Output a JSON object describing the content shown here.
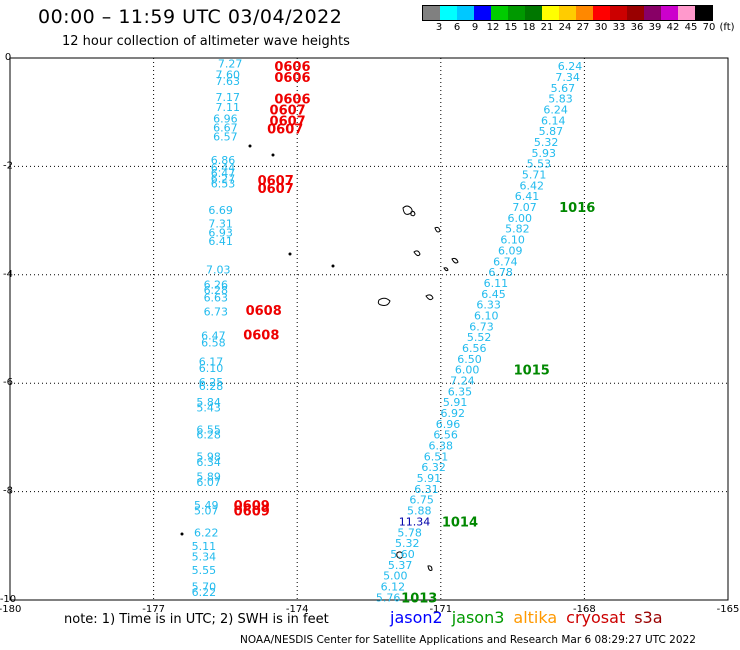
{
  "title": "00:00 – 11:59 UTC 03/04/2022",
  "subtitle": "12 hour collection of altimeter wave heights",
  "legend": {
    "colors": [
      "#808080",
      "#00ffff",
      "#00c8ff",
      "#0000ff",
      "#00cc00",
      "#009900",
      "#007700",
      "#ffff00",
      "#ffcc00",
      "#ff8800",
      "#ff0000",
      "#cc0000",
      "#990000",
      "#880066",
      "#cc00cc",
      "#ff99cc",
      "#000000"
    ],
    "labels": [
      "3",
      "6",
      "9",
      "12",
      "15",
      "18",
      "21",
      "24",
      "27",
      "30",
      "33",
      "36",
      "39",
      "42",
      "45",
      "70",
      "(ft)"
    ]
  },
  "axes": {
    "x_ticks": [
      "-180",
      "-177",
      "-174",
      "-171",
      "-168",
      "-165"
    ],
    "y_ticks": [
      "0",
      "-2",
      "-4",
      "-6",
      "-8",
      "-10"
    ],
    "xlim": [
      -180,
      -165
    ],
    "ylim": [
      -10,
      0
    ]
  },
  "satellites": [
    {
      "name": "jason2",
      "color": "#0000ff"
    },
    {
      "name": "jason3",
      "color": "#009900"
    },
    {
      "name": "altika",
      "color": "#ff9900"
    },
    {
      "name": "cryosat",
      "color": "#cc0000"
    },
    {
      "name": "s3a",
      "color": "#990000"
    }
  ],
  "note": "note: 1) Time is in UTC; 2) SWH is in feet",
  "credit": "NOAA/NESDIS Center for Satellite Applications and Research    Mar  6 08:29:27 UTC 2022",
  "measurements": [
    {
      "lon": -168.3,
      "lat": -0.15,
      "v": "6.24"
    },
    {
      "lon": -168.35,
      "lat": -0.35,
      "v": "7.34"
    },
    {
      "lon": -168.45,
      "lat": -0.55,
      "v": "5.67"
    },
    {
      "lon": -168.5,
      "lat": -0.75,
      "v": "5.83"
    },
    {
      "lon": -168.6,
      "lat": -0.95,
      "v": "6.24"
    },
    {
      "lon": -168.65,
      "lat": -1.15,
      "v": "6.14"
    },
    {
      "lon": -168.7,
      "lat": -1.35,
      "v": "5.87"
    },
    {
      "lon": -168.8,
      "lat": -1.55,
      "v": "5.32"
    },
    {
      "lon": -168.85,
      "lat": -1.75,
      "v": "5.93"
    },
    {
      "lon": -168.95,
      "lat": -1.95,
      "v": "5.53"
    },
    {
      "lon": -169.05,
      "lat": -2.15,
      "v": "5.71"
    },
    {
      "lon": -169.1,
      "lat": -2.35,
      "v": "6.42"
    },
    {
      "lon": -169.2,
      "lat": -2.55,
      "v": "6.41"
    },
    {
      "lon": -169.25,
      "lat": -2.75,
      "v": "7.07"
    },
    {
      "lon": -169.35,
      "lat": -2.95,
      "v": "6.00"
    },
    {
      "lon": -169.4,
      "lat": -3.15,
      "v": "5.82"
    },
    {
      "lon": -169.5,
      "lat": -3.35,
      "v": "6.10"
    },
    {
      "lon": -169.55,
      "lat": -3.55,
      "v": "6.09"
    },
    {
      "lon": -169.65,
      "lat": -3.75,
      "v": "6.74"
    },
    {
      "lon": -169.75,
      "lat": -3.95,
      "v": "6.78"
    },
    {
      "lon": -169.85,
      "lat": -4.15,
      "v": "6.11"
    },
    {
      "lon": -169.9,
      "lat": -4.35,
      "v": "6.45"
    },
    {
      "lon": -170.0,
      "lat": -4.55,
      "v": "6.33"
    },
    {
      "lon": -170.05,
      "lat": -4.75,
      "v": "6.10"
    },
    {
      "lon": -170.15,
      "lat": -4.95,
      "v": "6.73"
    },
    {
      "lon": -170.2,
      "lat": -5.15,
      "v": "5.52"
    },
    {
      "lon": -170.3,
      "lat": -5.35,
      "v": "6.56"
    },
    {
      "lon": -170.4,
      "lat": -5.55,
      "v": "6.50"
    },
    {
      "lon": -170.45,
      "lat": -5.75,
      "v": "6.00"
    },
    {
      "lon": -170.55,
      "lat": -5.95,
      "v": "7.24"
    },
    {
      "lon": -170.6,
      "lat": -6.15,
      "v": "6.35"
    },
    {
      "lon": -170.7,
      "lat": -6.35,
      "v": "5.91"
    },
    {
      "lon": -170.75,
      "lat": -6.55,
      "v": "6.92"
    },
    {
      "lon": -170.85,
      "lat": -6.75,
      "v": "6.96"
    },
    {
      "lon": -170.9,
      "lat": -6.95,
      "v": "6.56"
    },
    {
      "lon": -171.0,
      "lat": -7.15,
      "v": "6.38"
    },
    {
      "lon": -171.1,
      "lat": -7.35,
      "v": "6.51"
    },
    {
      "lon": -171.15,
      "lat": -7.55,
      "v": "6.32"
    },
    {
      "lon": -171.25,
      "lat": -7.75,
      "v": "5.91"
    },
    {
      "lon": -171.3,
      "lat": -7.95,
      "v": "6.31"
    },
    {
      "lon": -171.4,
      "lat": -8.15,
      "v": "6.75"
    },
    {
      "lon": -171.45,
      "lat": -8.35,
      "v": "5.88"
    },
    {
      "lon": -171.55,
      "lat": -8.55,
      "v": "11.34"
    },
    {
      "lon": -171.65,
      "lat": -8.75,
      "v": "5.78"
    },
    {
      "lon": -171.7,
      "lat": -8.95,
      "v": "5.32"
    },
    {
      "lon": -171.8,
      "lat": -9.15,
      "v": "5.60"
    },
    {
      "lon": -171.85,
      "lat": -9.35,
      "v": "5.37"
    },
    {
      "lon": -171.95,
      "lat": -9.55,
      "v": "5.00"
    },
    {
      "lon": -172.0,
      "lat": -9.75,
      "v": "6.12"
    },
    {
      "lon": -172.1,
      "lat": -9.95,
      "v": "5.76"
    },
    {
      "lon": -175.4,
      "lat": -0.1,
      "v": "7.27"
    },
    {
      "lon": -175.45,
      "lat": -0.3,
      "v": "7.60"
    },
    {
      "lon": -175.45,
      "lat": -0.42,
      "v": "7.63"
    },
    {
      "lon": -175.45,
      "lat": -0.72,
      "v": "7.17"
    },
    {
      "lon": -175.45,
      "lat": -0.9,
      "v": "7.11"
    },
    {
      "lon": -175.5,
      "lat": -1.12,
      "v": "6.96"
    },
    {
      "lon": -175.5,
      "lat": -1.28,
      "v": "6.67"
    },
    {
      "lon": -175.5,
      "lat": -1.45,
      "v": "6.57"
    },
    {
      "lon": -175.55,
      "lat": -1.88,
      "v": "6.86"
    },
    {
      "lon": -175.55,
      "lat": -2.02,
      "v": "6.44"
    },
    {
      "lon": -175.55,
      "lat": -2.12,
      "v": "6.47"
    },
    {
      "lon": -175.55,
      "lat": -2.22,
      "v": "6.27"
    },
    {
      "lon": -175.55,
      "lat": -2.32,
      "v": "6.53"
    },
    {
      "lon": -175.6,
      "lat": -2.8,
      "v": "6.69"
    },
    {
      "lon": -175.6,
      "lat": -3.05,
      "v": "7.31"
    },
    {
      "lon": -175.6,
      "lat": -3.22,
      "v": "6.93"
    },
    {
      "lon": -175.6,
      "lat": -3.38,
      "v": "6.41"
    },
    {
      "lon": -175.65,
      "lat": -3.9,
      "v": "7.03"
    },
    {
      "lon": -175.7,
      "lat": -4.18,
      "v": "6.26"
    },
    {
      "lon": -175.7,
      "lat": -4.28,
      "v": "6.28"
    },
    {
      "lon": -175.7,
      "lat": -4.42,
      "v": "6.63"
    },
    {
      "lon": -175.7,
      "lat": -4.68,
      "v": "6.73"
    },
    {
      "lon": -175.75,
      "lat": -5.12,
      "v": "6.47"
    },
    {
      "lon": -175.75,
      "lat": -5.25,
      "v": "6.58"
    },
    {
      "lon": -175.8,
      "lat": -5.6,
      "v": "6.17"
    },
    {
      "lon": -175.8,
      "lat": -5.72,
      "v": "6.10"
    },
    {
      "lon": -175.8,
      "lat": -5.98,
      "v": "6.25"
    },
    {
      "lon": -175.8,
      "lat": -6.05,
      "v": "6.28"
    },
    {
      "lon": -175.85,
      "lat": -6.35,
      "v": "5.84"
    },
    {
      "lon": -175.85,
      "lat": -6.45,
      "v": "5.43"
    },
    {
      "lon": -175.85,
      "lat": -6.85,
      "v": "6.55"
    },
    {
      "lon": -175.85,
      "lat": -6.95,
      "v": "6.28"
    },
    {
      "lon": -175.85,
      "lat": -7.35,
      "v": "5.98"
    },
    {
      "lon": -175.85,
      "lat": -7.45,
      "v": "6.34"
    },
    {
      "lon": -175.85,
      "lat": -7.72,
      "v": "5.89"
    },
    {
      "lon": -175.85,
      "lat": -7.82,
      "v": "6.07"
    },
    {
      "lon": -175.9,
      "lat": -8.25,
      "v": "5.49"
    },
    {
      "lon": -175.9,
      "lat": -8.35,
      "v": "5.07"
    },
    {
      "lon": -175.9,
      "lat": -8.75,
      "v": "6.22"
    },
    {
      "lon": -175.95,
      "lat": -9.0,
      "v": "5.11"
    },
    {
      "lon": -175.95,
      "lat": -9.2,
      "v": "5.34"
    },
    {
      "lon": -175.95,
      "lat": -9.45,
      "v": "5.55"
    },
    {
      "lon": -175.95,
      "lat": -9.75,
      "v": "5.70"
    },
    {
      "lon": -175.95,
      "lat": -9.85,
      "v": "6.22"
    }
  ],
  "times": [
    {
      "lon": -174.1,
      "lat": -0.15,
      "t": "0606",
      "sat": "cryosat"
    },
    {
      "lon": -174.1,
      "lat": -0.35,
      "t": "0606",
      "sat": "cryosat"
    },
    {
      "lon": -174.1,
      "lat": -0.75,
      "t": "0606",
      "sat": "cryosat"
    },
    {
      "lon": -174.2,
      "lat": -0.95,
      "t": "0607",
      "sat": "cryosat"
    },
    {
      "lon": -174.2,
      "lat": -1.15,
      "t": "0607",
      "sat": "cryosat"
    },
    {
      "lon": -174.25,
      "lat": -1.3,
      "t": "0607",
      "sat": "cryosat"
    },
    {
      "lon": -174.45,
      "lat": -2.25,
      "t": "0607",
      "sat": "cryosat"
    },
    {
      "lon": -174.45,
      "lat": -2.4,
      "t": "0607",
      "sat": "cryosat"
    },
    {
      "lon": -174.7,
      "lat": -4.65,
      "t": "0608",
      "sat": "cryosat"
    },
    {
      "lon": -174.75,
      "lat": -5.1,
      "t": "0608",
      "sat": "cryosat"
    },
    {
      "lon": -174.95,
      "lat": -8.25,
      "t": "0609",
      "sat": "cryosat"
    },
    {
      "lon": -174.95,
      "lat": -8.35,
      "t": "0609",
      "sat": "cryosat"
    },
    {
      "lon": -168.15,
      "lat": -2.75,
      "t": "1016",
      "sat": "jason3"
    },
    {
      "lon": -169.1,
      "lat": -5.75,
      "t": "1015",
      "sat": "jason3"
    },
    {
      "lon": -170.6,
      "lat": -8.55,
      "t": "1014",
      "sat": "jason3"
    },
    {
      "lon": -171.45,
      "lat": -9.95,
      "t": "1013",
      "sat": "jason3"
    }
  ],
  "colors": {
    "measurement": "#22bbee",
    "cryosat": "#ee0000",
    "jason3": "#008800"
  }
}
